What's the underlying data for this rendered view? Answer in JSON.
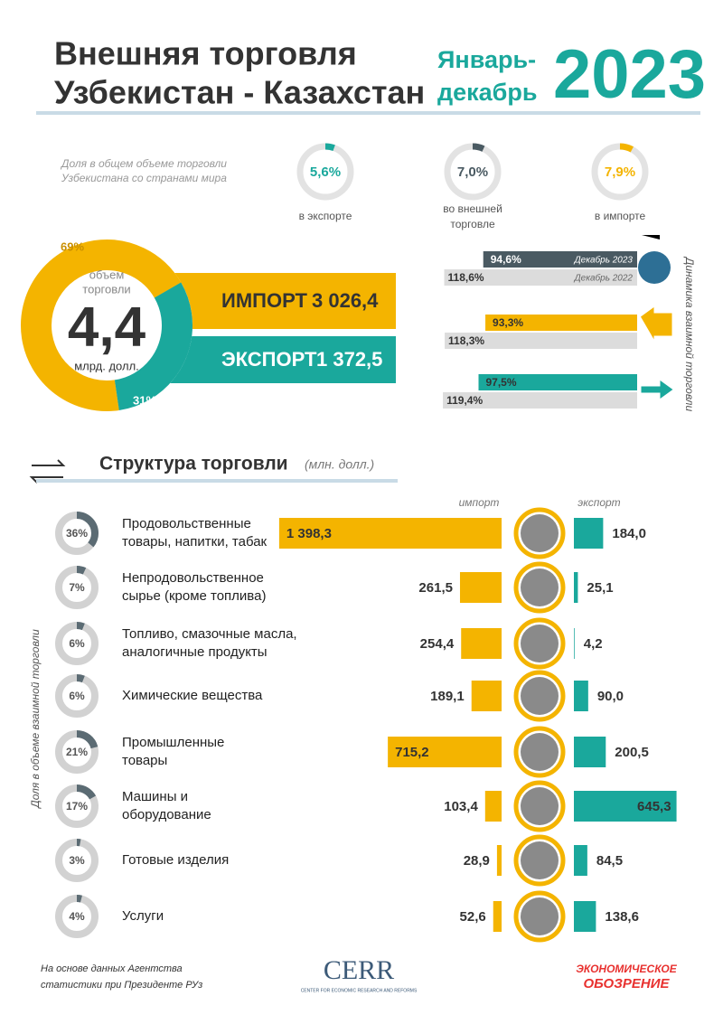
{
  "header": {
    "title_lines": [
      "Внешняя торговля",
      "Узбекистан - Казахстан"
    ],
    "period_lines": [
      "Январь-",
      "декабрь"
    ],
    "year": "2023"
  },
  "shares": {
    "caption_lines": [
      "Доля в общем объеме торговли",
      "Узбекистана со странами мира"
    ],
    "items": [
      {
        "value": 5.6,
        "label": "5,6%",
        "color": "#1aa89c",
        "caption_lines": [
          "в экспорте"
        ]
      },
      {
        "value": 7.0,
        "label": "7,0%",
        "color": "#4a5a62",
        "caption_lines": [
          "во внешней",
          "торговле"
        ]
      },
      {
        "value": 7.9,
        "label": "7,9%",
        "color": "#f4b400",
        "caption_lines": [
          "в импорте"
        ]
      }
    ]
  },
  "total": {
    "caption_lines": [
      "объем",
      "торговли"
    ],
    "value": "4,4",
    "unit": "млрд. долл.",
    "import_share": 69,
    "import_share_label": "69%",
    "export_share": 31,
    "export_share_label": "31%",
    "import_label": "ИМПОРТ",
    "import_value": 3026.4,
    "import_value_label": "3 026,4",
    "export_label": "ЭКСПОРТ",
    "export_value": 1372.5,
    "export_value_label": "1 372,5"
  },
  "dynamics": {
    "title": "Динамика взаимной торговли",
    "legend_2023": "Декабрь 2023",
    "legend_2022": "Декабрь 2022",
    "rows": [
      {
        "value_2023": 94.6,
        "label_2023": "94,6%",
        "color": "#4a5a62",
        "value_2022": 118.6,
        "label_2022": "118,6%"
      },
      {
        "value_2023": 93.3,
        "label_2023": "93,3%",
        "color": "#f4b400",
        "value_2022": 118.3,
        "label_2022": "118,3%"
      },
      {
        "value_2023": 97.5,
        "label_2023": "97,5%",
        "color": "#1aa89c",
        "value_2022": 119.4,
        "label_2022": "119,4%"
      }
    ]
  },
  "structure": {
    "title": "Структура торговли",
    "unit": "(млн. долл.)",
    "import_heading": "импорт",
    "export_heading": "экспорт",
    "side_label": "Доля в объеме взаимной торговли",
    "rows": [
      {
        "share": 36,
        "share_label": "36%",
        "name_lines": [
          "Продовольственные",
          "товары, напитки, табак"
        ],
        "import": 1398.3,
        "import_label": "1 398,3",
        "export": 184.0,
        "export_label": "184,0"
      },
      {
        "share": 7,
        "share_label": "7%",
        "name_lines": [
          "Непродовольственное",
          "сырье (кроме топлива)"
        ],
        "import": 261.5,
        "import_label": "261,5",
        "export": 25.1,
        "export_label": "25,1"
      },
      {
        "share": 6,
        "share_label": "6%",
        "name_lines": [
          "Топливо, смазочные масла,",
          "аналогичные продукты"
        ],
        "import": 254.4,
        "import_label": "254,4",
        "export": 4.2,
        "export_label": "4,2"
      },
      {
        "share": 6,
        "share_label": "6%",
        "name_lines": [
          "Химические вещества"
        ],
        "import": 189.1,
        "import_label": "189,1",
        "export": 90.0,
        "export_label": "90,0"
      },
      {
        "share": 21,
        "share_label": "21%",
        "name_lines": [
          "Промышленные",
          "товары"
        ],
        "import": 715.2,
        "import_label": "715,2",
        "export": 200.5,
        "export_label": "200,5"
      },
      {
        "share": 17,
        "share_label": "17%",
        "name_lines": [
          "Машины и",
          "оборудование"
        ],
        "import": 103.4,
        "import_label": "103,4",
        "export": 645.3,
        "export_label": "645,3"
      },
      {
        "share": 3,
        "share_label": "3%",
        "name_lines": [
          "Готовые изделия"
        ],
        "import": 28.9,
        "import_label": "28,9",
        "export": 84.5,
        "export_label": "84,5"
      },
      {
        "share": 4,
        "share_label": "4%",
        "name_lines": [
          "Услуги"
        ],
        "import": 52.6,
        "import_label": "52,6",
        "export": 138.6,
        "export_label": "138,6"
      }
    ]
  },
  "footer": {
    "source_lines": [
      "На основе данных Агентства",
      "статистики при Президенте РУз"
    ],
    "cerr": "CERR",
    "cerr_sub": "CENTER FOR ECONOMIC RESEARCH AND REFORMS",
    "eo_lines": [
      "ЭКОНОМИЧЕСКОЕ",
      "ОБОЗРЕНИЕ"
    ]
  }
}
